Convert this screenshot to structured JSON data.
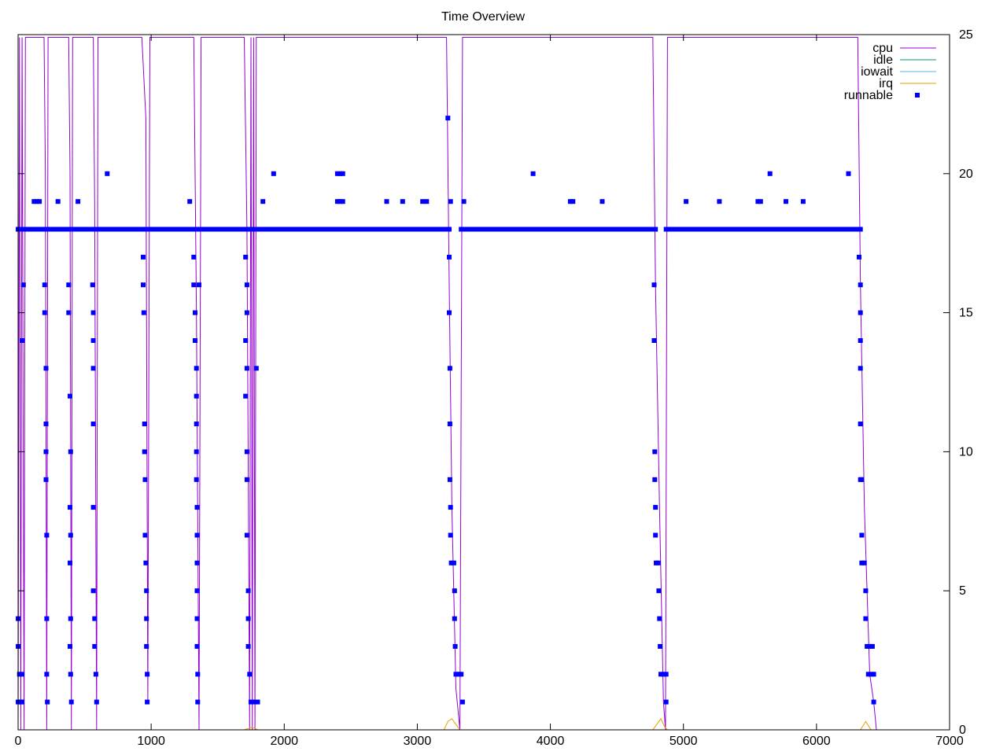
{
  "chart_data": {
    "type": "line",
    "title": "Time Overview",
    "xlabel": "",
    "ylabel": "",
    "xlim": [
      0,
      7000
    ],
    "ylim": [
      0,
      25
    ],
    "x_ticks": [
      0,
      1000,
      2000,
      3000,
      4000,
      5000,
      6000,
      7000
    ],
    "y_ticks": [
      0,
      5,
      10,
      15,
      20,
      25
    ],
    "y_axis_side": "right",
    "grid": false,
    "legend_position": "top-right",
    "colors": {
      "cpu": "#9400d3",
      "idle": "#009e73",
      "iowait": "#56b4e9",
      "irq": "#e69f00",
      "runnable": "#0000ff"
    },
    "series": [
      {
        "name": "cpu",
        "kind": "line",
        "points": [
          [
            0,
            0
          ],
          [
            10,
            24.9
          ],
          [
            20,
            0
          ],
          [
            30,
            24.9
          ],
          [
            45,
            0
          ],
          [
            55,
            24.9
          ],
          [
            195,
            24.9
          ],
          [
            205,
            20
          ],
          [
            215,
            0
          ],
          [
            225,
            24.9
          ],
          [
            380,
            24.9
          ],
          [
            390,
            20
          ],
          [
            400,
            0
          ],
          [
            410,
            24.9
          ],
          [
            565,
            24.9
          ],
          [
            575,
            19
          ],
          [
            590,
            0
          ],
          [
            600,
            24.9
          ],
          [
            930,
            24.9
          ],
          [
            960,
            22
          ],
          [
            975,
            1
          ],
          [
            990,
            24.9
          ],
          [
            1320,
            24.9
          ],
          [
            1340,
            15
          ],
          [
            1360,
            0
          ],
          [
            1375,
            24.9
          ],
          [
            1700,
            24.9
          ],
          [
            1720,
            18
          ],
          [
            1740,
            0
          ],
          [
            1750,
            24.9
          ],
          [
            1760,
            0
          ],
          [
            1770,
            24.9
          ],
          [
            1780,
            0
          ],
          [
            1790,
            24.9
          ],
          [
            3220,
            24.9
          ],
          [
            3240,
            16
          ],
          [
            3260,
            8
          ],
          [
            3290,
            1.5
          ],
          [
            3320,
            0
          ],
          [
            3340,
            24.9
          ],
          [
            4770,
            24.9
          ],
          [
            4790,
            16
          ],
          [
            4820,
            8
          ],
          [
            4850,
            1
          ],
          [
            4865,
            0
          ],
          [
            4880,
            24.9
          ],
          [
            6310,
            24.9
          ],
          [
            6330,
            16
          ],
          [
            6360,
            8
          ],
          [
            6400,
            2
          ],
          [
            6430,
            1
          ],
          [
            6450,
            0
          ],
          [
            7000,
            0
          ]
        ]
      },
      {
        "name": "idle",
        "kind": "line",
        "points": [
          [
            0,
            0
          ],
          [
            7000,
            0
          ]
        ]
      },
      {
        "name": "iowait",
        "kind": "line",
        "points": [
          [
            0,
            0
          ],
          [
            7000,
            0
          ]
        ]
      },
      {
        "name": "irq",
        "kind": "line",
        "points": [
          [
            0,
            0
          ],
          [
            1700,
            0
          ],
          [
            1760,
            0.1
          ],
          [
            1800,
            0
          ],
          [
            3200,
            0
          ],
          [
            3230,
            0.3
          ],
          [
            3260,
            0.4
          ],
          [
            3290,
            0.2
          ],
          [
            3320,
            0
          ],
          [
            4770,
            0
          ],
          [
            4800,
            0.2
          ],
          [
            4830,
            0.4
          ],
          [
            4860,
            0.1
          ],
          [
            4880,
            0
          ],
          [
            6330,
            0
          ],
          [
            6370,
            0.3
          ],
          [
            6410,
            0
          ],
          [
            7000,
            0
          ]
        ]
      },
      {
        "name": "runnable",
        "kind": "scatter",
        "points": [
          [
            0,
            1
          ],
          [
            0,
            3
          ],
          [
            0,
            4
          ],
          [
            10,
            2
          ],
          [
            20,
            1
          ],
          [
            30,
            1
          ],
          [
            30,
            14
          ],
          [
            40,
            16
          ],
          [
            30,
            2
          ],
          [
            120,
            19
          ],
          [
            140,
            19
          ],
          [
            160,
            19
          ],
          [
            300,
            19
          ],
          [
            450,
            19
          ],
          [
            670,
            20
          ],
          [
            200,
            16
          ],
          [
            200,
            15
          ],
          [
            210,
            13
          ],
          [
            210,
            11
          ],
          [
            210,
            10
          ],
          [
            210,
            9
          ],
          [
            215,
            7
          ],
          [
            215,
            4
          ],
          [
            215,
            2
          ],
          [
            220,
            1
          ],
          [
            380,
            16
          ],
          [
            380,
            15
          ],
          [
            390,
            12
          ],
          [
            395,
            10
          ],
          [
            390,
            8
          ],
          [
            395,
            7
          ],
          [
            390,
            6
          ],
          [
            395,
            4
          ],
          [
            390,
            3
          ],
          [
            395,
            2
          ],
          [
            400,
            1
          ],
          [
            560,
            16
          ],
          [
            565,
            15
          ],
          [
            565,
            14
          ],
          [
            565,
            13
          ],
          [
            565,
            11
          ],
          [
            565,
            8
          ],
          [
            565,
            5
          ],
          [
            575,
            4
          ],
          [
            575,
            3
          ],
          [
            585,
            2
          ],
          [
            590,
            1
          ],
          [
            940,
            17
          ],
          [
            940,
            16
          ],
          [
            945,
            15
          ],
          [
            950,
            11
          ],
          [
            950,
            10
          ],
          [
            955,
            9
          ],
          [
            955,
            7
          ],
          [
            960,
            6
          ],
          [
            965,
            5
          ],
          [
            965,
            4
          ],
          [
            965,
            3
          ],
          [
            970,
            2
          ],
          [
            970,
            1
          ],
          [
            1290,
            19
          ],
          [
            1320,
            17
          ],
          [
            1320,
            16
          ],
          [
            1330,
            15
          ],
          [
            1330,
            14
          ],
          [
            1340,
            13
          ],
          [
            1340,
            12
          ],
          [
            1340,
            11
          ],
          [
            1340,
            10
          ],
          [
            1340,
            9
          ],
          [
            1345,
            8
          ],
          [
            1345,
            7
          ],
          [
            1345,
            6
          ],
          [
            1345,
            5
          ],
          [
            1345,
            4
          ],
          [
            1345,
            3
          ],
          [
            1350,
            2
          ],
          [
            1350,
            1
          ],
          [
            1360,
            16
          ],
          [
            1710,
            17
          ],
          [
            1720,
            16
          ],
          [
            1720,
            15
          ],
          [
            1710,
            14
          ],
          [
            1720,
            13
          ],
          [
            1710,
            12
          ],
          [
            1720,
            10
          ],
          [
            1720,
            9
          ],
          [
            1720,
            7
          ],
          [
            1730,
            5
          ],
          [
            1730,
            4
          ],
          [
            1730,
            3
          ],
          [
            1740,
            2
          ],
          [
            1750,
            1
          ],
          [
            1770,
            1
          ],
          [
            1790,
            13
          ],
          [
            1800,
            1
          ],
          [
            1840,
            19
          ],
          [
            1920,
            20
          ],
          [
            2400,
            19
          ],
          [
            2420,
            19
          ],
          [
            2440,
            19
          ],
          [
            2400,
            20
          ],
          [
            2420,
            20
          ],
          [
            2440,
            20
          ],
          [
            2770,
            19
          ],
          [
            2890,
            19
          ],
          [
            3040,
            19
          ],
          [
            3070,
            19
          ],
          [
            3230,
            22
          ],
          [
            3250,
            19
          ],
          [
            3240,
            17
          ],
          [
            3240,
            15
          ],
          [
            3245,
            13
          ],
          [
            3245,
            11
          ],
          [
            3245,
            9
          ],
          [
            3250,
            8
          ],
          [
            3250,
            7
          ],
          [
            3255,
            6
          ],
          [
            3275,
            6
          ],
          [
            3280,
            5
          ],
          [
            3280,
            4
          ],
          [
            3285,
            3
          ],
          [
            3290,
            2
          ],
          [
            3310,
            2
          ],
          [
            3330,
            2
          ],
          [
            3340,
            1
          ],
          [
            3350,
            19
          ],
          [
            3870,
            20
          ],
          [
            4150,
            19
          ],
          [
            4170,
            19
          ],
          [
            4390,
            19
          ],
          [
            4780,
            16
          ],
          [
            4780,
            14
          ],
          [
            4785,
            10
          ],
          [
            4785,
            9
          ],
          [
            4790,
            8
          ],
          [
            4790,
            7
          ],
          [
            4795,
            6
          ],
          [
            4810,
            6
          ],
          [
            4815,
            5
          ],
          [
            4820,
            4
          ],
          [
            4825,
            3
          ],
          [
            4830,
            2
          ],
          [
            4850,
            2
          ],
          [
            4870,
            2
          ],
          [
            4870,
            1
          ],
          [
            5020,
            19
          ],
          [
            5270,
            19
          ],
          [
            5560,
            19
          ],
          [
            5580,
            19
          ],
          [
            5650,
            20
          ],
          [
            5770,
            19
          ],
          [
            5900,
            19
          ],
          [
            6240,
            20
          ],
          [
            6320,
            17
          ],
          [
            6330,
            16
          ],
          [
            6330,
            15
          ],
          [
            6330,
            14
          ],
          [
            6330,
            13
          ],
          [
            6330,
            11
          ],
          [
            6330,
            9
          ],
          [
            6340,
            9
          ],
          [
            6340,
            7
          ],
          [
            6340,
            6
          ],
          [
            6360,
            6
          ],
          [
            6370,
            5
          ],
          [
            6370,
            4
          ],
          [
            6380,
            3
          ],
          [
            6400,
            3
          ],
          [
            6420,
            3
          ],
          [
            6390,
            2
          ],
          [
            6410,
            2
          ],
          [
            6430,
            2
          ],
          [
            6430,
            1
          ]
        ],
        "band": {
          "y": 18,
          "segments": [
            [
              0,
              3250
            ],
            [
              3330,
              4800
            ],
            [
              4870,
              6340
            ]
          ],
          "step": 20
        }
      }
    ]
  }
}
